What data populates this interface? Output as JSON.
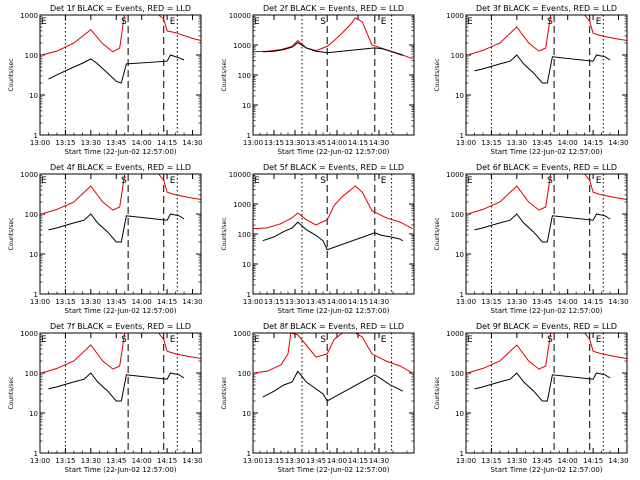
{
  "figure": {
    "x_label": "Start Time (22-Jun-02 12:57:00)",
    "y_label": "Counts/sec",
    "x_ticks": [
      "13:00",
      "13:15",
      "13:30",
      "13:45",
      "14:00",
      "14:15",
      "14:30"
    ],
    "y_ticks": [
      "1",
      "10",
      "100",
      "1000"
    ],
    "marker_labels": {
      "start": "S",
      "end": "E"
    },
    "colors": {
      "events": "#000000",
      "lld": "#dd0000",
      "axes": "#000000"
    }
  },
  "chart_data": [
    {
      "type": "line",
      "title": "Det 1f BLACK = Events, RED = LLD",
      "xlabel": "Start Time (22-Jun-02 12:57:00)",
      "ylabel": "Counts/sec",
      "yscale": "log",
      "xlim": [
        "13:00",
        "14:35"
      ],
      "ylim": [
        1,
        1000
      ],
      "markers": {
        "dotted": [
          "13:15",
          "14:21"
        ],
        "dashed": [
          "13:52",
          "14:13"
        ]
      },
      "series": [
        {
          "name": "LLD",
          "color": "red",
          "x": [
            "13:01",
            "13:10",
            "13:20",
            "13:30",
            "13:37",
            "13:43",
            "13:47",
            "13:50",
            "13:53",
            "13:56",
            "13:58",
            "14:05",
            "14:10",
            "14:13",
            "14:15",
            "14:20",
            "14:30",
            "14:35"
          ],
          "y": [
            100,
            125,
            200,
            430,
            190,
            120,
            150,
            1200,
            1500,
            1000,
            1000,
            1000,
            1000,
            800,
            400,
            360,
            260,
            230
          ]
        },
        {
          "name": "Events",
          "color": "black",
          "x": [
            "13:05",
            "13:10",
            "13:20",
            "13:26",
            "13:30",
            "13:34",
            "13:40",
            "13:45",
            "13:48",
            "13:51",
            "14:15",
            "14:17",
            "14:22",
            "14:25"
          ],
          "y": [
            25,
            32,
            50,
            65,
            80,
            60,
            35,
            22,
            20,
            60,
            70,
            100,
            85,
            75
          ]
        }
      ]
    },
    {
      "type": "line",
      "title": "Det 2f BLACK = Events, RED = LLD",
      "xlabel": "Start Time (22-Jun-02 12:57:00)",
      "ylabel": "Counts/sec",
      "yscale": "log",
      "xlim": [
        "13:00",
        "14:55"
      ],
      "ylim": [
        1,
        10000
      ],
      "markers": {
        "dotted": [
          "13:35",
          "14:39"
        ],
        "dashed": [
          "13:53",
          "14:27"
        ]
      },
      "series": [
        {
          "name": "LLD",
          "color": "red",
          "x": [
            "13:00",
            "13:10",
            "13:20",
            "13:28",
            "13:32",
            "13:38",
            "13:45",
            "13:53",
            "13:58",
            "14:04",
            "14:10",
            "14:13",
            "14:18",
            "14:25",
            "14:35",
            "14:45",
            "14:54"
          ],
          "y": [
            600,
            620,
            700,
            900,
            1400,
            800,
            650,
            900,
            1400,
            2600,
            5000,
            8000,
            6000,
            1000,
            700,
            500,
            350
          ]
        },
        {
          "name": "Events",
          "color": "black",
          "x": [
            "13:07",
            "13:15",
            "13:22",
            "13:28",
            "13:32",
            "13:38",
            "13:45",
            "13:50",
            "13:53",
            "14:27",
            "14:32",
            "14:38",
            "14:44",
            "14:47"
          ],
          "y": [
            600,
            620,
            700,
            850,
            1200,
            800,
            620,
            580,
            550,
            800,
            750,
            620,
            500,
            450
          ]
        }
      ]
    },
    {
      "type": "line",
      "title": "Det 3f BLACK = Events, RED = LLD",
      "xlabel": "Start Time (22-Jun-02 12:57:00)",
      "ylabel": "Counts/sec",
      "yscale": "log",
      "xlim": [
        "13:00",
        "14:35"
      ],
      "ylim": [
        1,
        1000
      ],
      "markers": {
        "dotted": [
          "13:15",
          "14:21"
        ],
        "dashed": [
          "13:52",
          "14:13"
        ]
      },
      "series": [
        {
          "name": "LLD",
          "color": "red",
          "x": [
            "13:01",
            "13:10",
            "13:20",
            "13:30",
            "13:37",
            "13:43",
            "13:47",
            "13:50",
            "13:53",
            "13:56",
            "13:58",
            "14:05",
            "14:10",
            "14:13",
            "14:15",
            "14:20",
            "14:30",
            "14:35"
          ],
          "y": [
            100,
            130,
            200,
            500,
            200,
            125,
            150,
            1000,
            1300,
            1000,
            1000,
            1000,
            1000,
            700,
            350,
            300,
            250,
            230
          ]
        },
        {
          "name": "Events",
          "color": "black",
          "x": [
            "13:05",
            "13:10",
            "13:20",
            "13:26",
            "13:30",
            "13:34",
            "13:40",
            "13:45",
            "13:48",
            "13:51",
            "14:15",
            "14:17",
            "14:22",
            "14:25"
          ],
          "y": [
            40,
            45,
            60,
            70,
            100,
            60,
            35,
            20,
            20,
            90,
            70,
            100,
            90,
            75
          ]
        }
      ]
    },
    {
      "type": "line",
      "title": "Det 4f BLACK = Events, RED = LLD",
      "xlabel": "Start Time (22-Jun-02 12:57:00)",
      "ylabel": "Counts/sec",
      "yscale": "log",
      "xlim": [
        "13:00",
        "14:35"
      ],
      "ylim": [
        1,
        1000
      ],
      "markers": {
        "dotted": [
          "13:15",
          "14:21"
        ],
        "dashed": [
          "13:52",
          "14:13"
        ]
      },
      "series": [
        {
          "name": "LLD",
          "color": "red",
          "x": [
            "13:01",
            "13:10",
            "13:20",
            "13:30",
            "13:37",
            "13:43",
            "13:47",
            "13:50",
            "13:53",
            "13:56",
            "13:58",
            "14:05",
            "14:10",
            "14:13",
            "14:15",
            "14:20",
            "14:30",
            "14:35"
          ],
          "y": [
            100,
            130,
            200,
            500,
            200,
            125,
            150,
            1000,
            1300,
            1000,
            1000,
            1000,
            1000,
            700,
            350,
            300,
            250,
            230
          ]
        },
        {
          "name": "Events",
          "color": "black",
          "x": [
            "13:05",
            "13:10",
            "13:20",
            "13:26",
            "13:30",
            "13:34",
            "13:40",
            "13:45",
            "13:48",
            "13:51",
            "14:15",
            "14:17",
            "14:22",
            "14:25"
          ],
          "y": [
            40,
            45,
            60,
            70,
            100,
            60,
            35,
            20,
            20,
            90,
            70,
            100,
            90,
            75
          ]
        }
      ]
    },
    {
      "type": "line",
      "title": "Det 5f BLACK = Events, RED = LLD",
      "xlabel": "Start Time (22-Jun-02 12:57:00)",
      "ylabel": "Counts/sec",
      "yscale": "log",
      "xlim": [
        "13:00",
        "14:55"
      ],
      "ylim": [
        1,
        10000
      ],
      "markers": {
        "dotted": [
          "13:35",
          "14:39"
        ],
        "dashed": [
          "13:53",
          "14:27"
        ]
      },
      "series": [
        {
          "name": "LLD",
          "color": "red",
          "x": [
            "13:00",
            "13:10",
            "13:20",
            "13:28",
            "13:32",
            "13:38",
            "13:45",
            "13:53",
            "13:58",
            "14:04",
            "14:10",
            "14:13",
            "14:18",
            "14:25",
            "14:35",
            "14:45",
            "14:54"
          ],
          "y": [
            150,
            160,
            220,
            350,
            500,
            300,
            200,
            300,
            900,
            1800,
            3000,
            4000,
            2500,
            600,
            350,
            250,
            150
          ]
        },
        {
          "name": "Events",
          "color": "black",
          "x": [
            "13:07",
            "13:15",
            "13:22",
            "13:28",
            "13:32",
            "13:38",
            "13:45",
            "13:50",
            "13:53",
            "14:27",
            "14:32",
            "14:38",
            "14:44",
            "14:47"
          ],
          "y": [
            60,
            80,
            120,
            160,
            250,
            140,
            90,
            60,
            30,
            110,
            90,
            80,
            70,
            60
          ]
        }
      ]
    },
    {
      "type": "line",
      "title": "Det 6f BLACK = Events, RED = LLD",
      "xlabel": "Start Time (22-Jun-02 12:57:00)",
      "ylabel": "Counts/sec",
      "yscale": "log",
      "xlim": [
        "13:00",
        "14:35"
      ],
      "ylim": [
        1,
        1000
      ],
      "markers": {
        "dotted": [
          "13:15",
          "14:21"
        ],
        "dashed": [
          "13:52",
          "14:13"
        ]
      },
      "series": [
        {
          "name": "LLD",
          "color": "red",
          "x": [
            "13:01",
            "13:10",
            "13:20",
            "13:30",
            "13:37",
            "13:43",
            "13:47",
            "13:50",
            "13:53",
            "13:56",
            "13:58",
            "14:05",
            "14:10",
            "14:13",
            "14:15",
            "14:20",
            "14:30",
            "14:35"
          ],
          "y": [
            100,
            130,
            200,
            500,
            200,
            125,
            150,
            1000,
            1300,
            1000,
            1000,
            1000,
            1000,
            700,
            350,
            300,
            250,
            230
          ]
        },
        {
          "name": "Events",
          "color": "black",
          "x": [
            "13:05",
            "13:10",
            "13:20",
            "13:26",
            "13:30",
            "13:34",
            "13:40",
            "13:45",
            "13:48",
            "13:51",
            "14:15",
            "14:17",
            "14:22",
            "14:25"
          ],
          "y": [
            40,
            45,
            60,
            70,
            100,
            60,
            35,
            20,
            20,
            90,
            70,
            100,
            90,
            75
          ]
        }
      ]
    },
    {
      "type": "line",
      "title": "Det 7f BLACK = Events, RED = LLD",
      "xlabel": "Start Time (22-Jun-02 12:57:00)",
      "ylabel": "Counts/sec",
      "yscale": "log",
      "xlim": [
        "13:00",
        "14:35"
      ],
      "ylim": [
        1,
        1000
      ],
      "markers": {
        "dotted": [
          "13:15",
          "14:21"
        ],
        "dashed": [
          "13:52",
          "14:13"
        ]
      },
      "series": [
        {
          "name": "LLD",
          "color": "red",
          "x": [
            "13:01",
            "13:10",
            "13:20",
            "13:30",
            "13:37",
            "13:43",
            "13:47",
            "13:50",
            "13:53",
            "13:56",
            "13:58",
            "14:05",
            "14:10",
            "14:13",
            "14:15",
            "14:20",
            "14:30",
            "14:35"
          ],
          "y": [
            100,
            130,
            200,
            500,
            200,
            125,
            150,
            1000,
            1300,
            1000,
            1000,
            1000,
            1000,
            700,
            350,
            300,
            250,
            230
          ]
        },
        {
          "name": "Events",
          "color": "black",
          "x": [
            "13:05",
            "13:10",
            "13:20",
            "13:26",
            "13:30",
            "13:34",
            "13:40",
            "13:45",
            "13:48",
            "13:51",
            "14:15",
            "14:17",
            "14:22",
            "14:25"
          ],
          "y": [
            40,
            45,
            60,
            70,
            100,
            60,
            35,
            20,
            20,
            90,
            70,
            100,
            90,
            75
          ]
        }
      ]
    },
    {
      "type": "line",
      "title": "Det 8f BLACK = Events, RED = LLD",
      "xlabel": "Start Time (22-Jun-02 12:57:00)",
      "ylabel": "Counts/sec",
      "yscale": "log",
      "xlim": [
        "13:00",
        "14:55"
      ],
      "ylim": [
        1,
        1000
      ],
      "markers": {
        "dotted": [
          "13:35",
          "14:39"
        ],
        "dashed": [
          "13:53",
          "14:27"
        ]
      },
      "series": [
        {
          "name": "LLD",
          "color": "red",
          "x": [
            "13:00",
            "13:10",
            "13:20",
            "13:25",
            "13:27",
            "13:32",
            "13:38",
            "13:45",
            "13:53",
            "13:58",
            "14:04",
            "14:10",
            "14:13",
            "14:18",
            "14:25",
            "14:35",
            "14:45",
            "14:54"
          ],
          "y": [
            100,
            110,
            160,
            300,
            1000,
            900,
            500,
            250,
            300,
            700,
            1000,
            1000,
            1000,
            800,
            300,
            200,
            150,
            100
          ]
        },
        {
          "name": "Events",
          "color": "black",
          "x": [
            "13:07",
            "13:15",
            "13:22",
            "13:28",
            "13:32",
            "13:38",
            "13:45",
            "13:50",
            "13:53",
            "14:27",
            "14:32",
            "14:38",
            "14:44",
            "14:47"
          ],
          "y": [
            25,
            35,
            50,
            60,
            110,
            60,
            40,
            30,
            20,
            90,
            70,
            50,
            40,
            35
          ]
        }
      ]
    },
    {
      "type": "line",
      "title": "Det 9f BLACK = Events, RED = LLD",
      "xlabel": "Start Time (22-Jun-02 12:57:00)",
      "ylabel": "Counts/sec",
      "yscale": "log",
      "xlim": [
        "13:00",
        "14:35"
      ],
      "ylim": [
        1,
        1000
      ],
      "markers": {
        "dotted": [
          "13:15",
          "14:21"
        ],
        "dashed": [
          "13:52",
          "14:13"
        ]
      },
      "series": [
        {
          "name": "LLD",
          "color": "red",
          "x": [
            "13:01",
            "13:10",
            "13:20",
            "13:30",
            "13:37",
            "13:43",
            "13:47",
            "13:50",
            "13:53",
            "13:56",
            "13:58",
            "14:05",
            "14:10",
            "14:13",
            "14:15",
            "14:20",
            "14:30",
            "14:35"
          ],
          "y": [
            100,
            130,
            200,
            500,
            200,
            125,
            150,
            1000,
            1300,
            1000,
            1000,
            1000,
            1000,
            700,
            350,
            300,
            250,
            230
          ]
        },
        {
          "name": "Events",
          "color": "black",
          "x": [
            "13:05",
            "13:10",
            "13:20",
            "13:26",
            "13:30",
            "13:34",
            "13:40",
            "13:45",
            "13:48",
            "13:51",
            "14:15",
            "14:17",
            "14:22",
            "14:25"
          ],
          "y": [
            40,
            45,
            60,
            70,
            100,
            60,
            35,
            20,
            20,
            90,
            70,
            100,
            90,
            75
          ]
        }
      ]
    }
  ]
}
